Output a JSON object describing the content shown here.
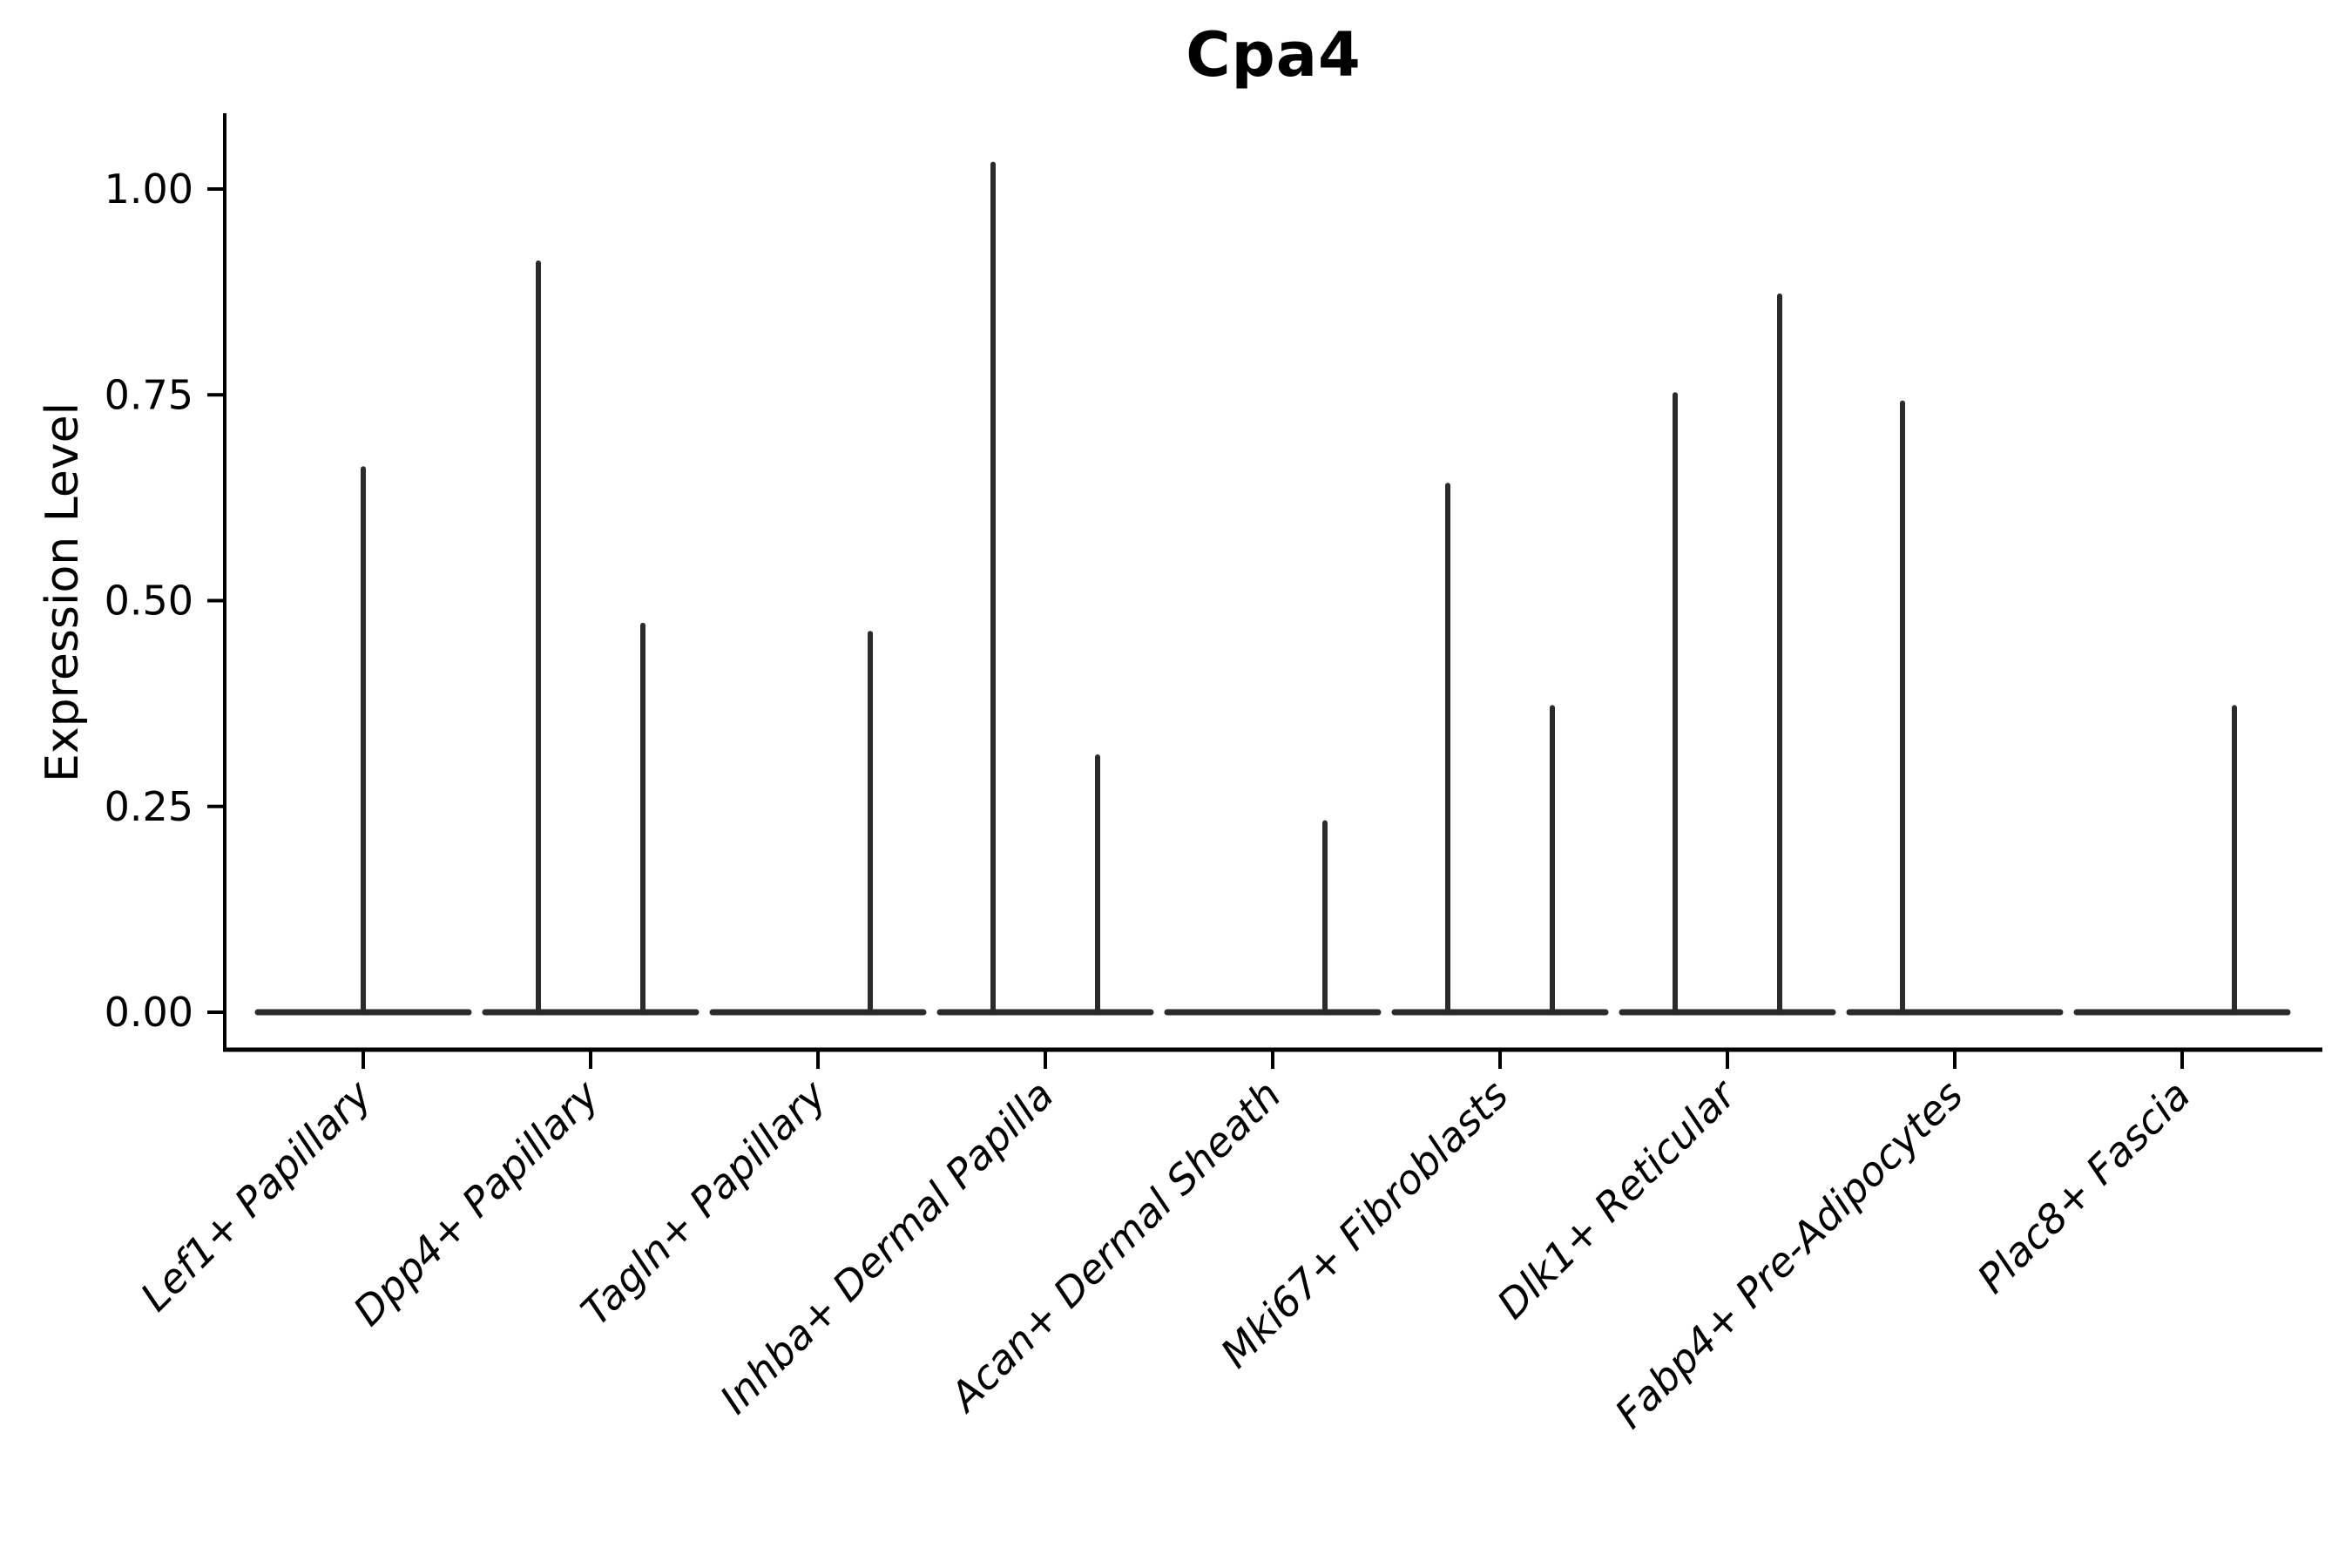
{
  "chart_data": {
    "type": "violin",
    "title": "Cpa4",
    "xlabel": "",
    "ylabel": "Expression Level",
    "ylim": [
      0,
      1.09
    ],
    "yticks": [
      0,
      0.25,
      0.5,
      0.75,
      1.0
    ],
    "ytick_labels": [
      "0.00",
      "0.25",
      "0.50",
      "0.75",
      "1.00"
    ],
    "grid": false,
    "legend_position": "none",
    "line_color": "#2b2b2b",
    "text_color": "#000000",
    "background_color": "#ffffff",
    "categories": [
      "Lef1+ Papillary",
      "Dpp4+ Papillary",
      "Tagln+ Papillary",
      "Inhba+ Dermal Papilla",
      "Acan+ Dermal Sheath",
      "Mki67+ Fibroblasts",
      "Dlk1+ Reticular",
      "Fabp4+ Pre-Adipocytes",
      "Plac8+ Fascia"
    ],
    "violins": [
      {
        "category": "Lef1+ Papillary",
        "baseline_value": 0,
        "spikes": [
          {
            "pos": "center",
            "max": 0.66
          }
        ]
      },
      {
        "category": "Dpp4+ Papillary",
        "baseline_value": 0,
        "spikes": [
          {
            "pos": "left",
            "max": 0.91
          },
          {
            "pos": "right",
            "max": 0.47
          }
        ]
      },
      {
        "category": "Tagln+ Papillary",
        "baseline_value": 0,
        "spikes": [
          {
            "pos": "right",
            "max": 0.46
          }
        ]
      },
      {
        "category": "Inhba+ Dermal Papilla",
        "baseline_value": 0,
        "spikes": [
          {
            "pos": "left",
            "max": 1.03
          },
          {
            "pos": "right",
            "max": 0.31
          }
        ]
      },
      {
        "category": "Acan+ Dermal Sheath",
        "baseline_value": 0,
        "spikes": [
          {
            "pos": "right",
            "max": 0.23
          }
        ]
      },
      {
        "category": "Mki67+ Fibroblasts",
        "baseline_value": 0,
        "spikes": [
          {
            "pos": "left",
            "max": 0.64
          },
          {
            "pos": "right",
            "max": 0.37
          }
        ]
      },
      {
        "category": "Dlk1+ Reticular",
        "baseline_value": 0,
        "spikes": [
          {
            "pos": "left",
            "max": 0.75
          },
          {
            "pos": "right",
            "max": 0.87
          }
        ]
      },
      {
        "category": "Fabp4+ Pre-Adipocytes",
        "baseline_value": 0,
        "spikes": [
          {
            "pos": "left",
            "max": 0.74
          }
        ]
      },
      {
        "category": "Plac8+ Fascia",
        "baseline_value": 0,
        "spikes": [
          {
            "pos": "right",
            "max": 0.37
          }
        ]
      }
    ]
  }
}
